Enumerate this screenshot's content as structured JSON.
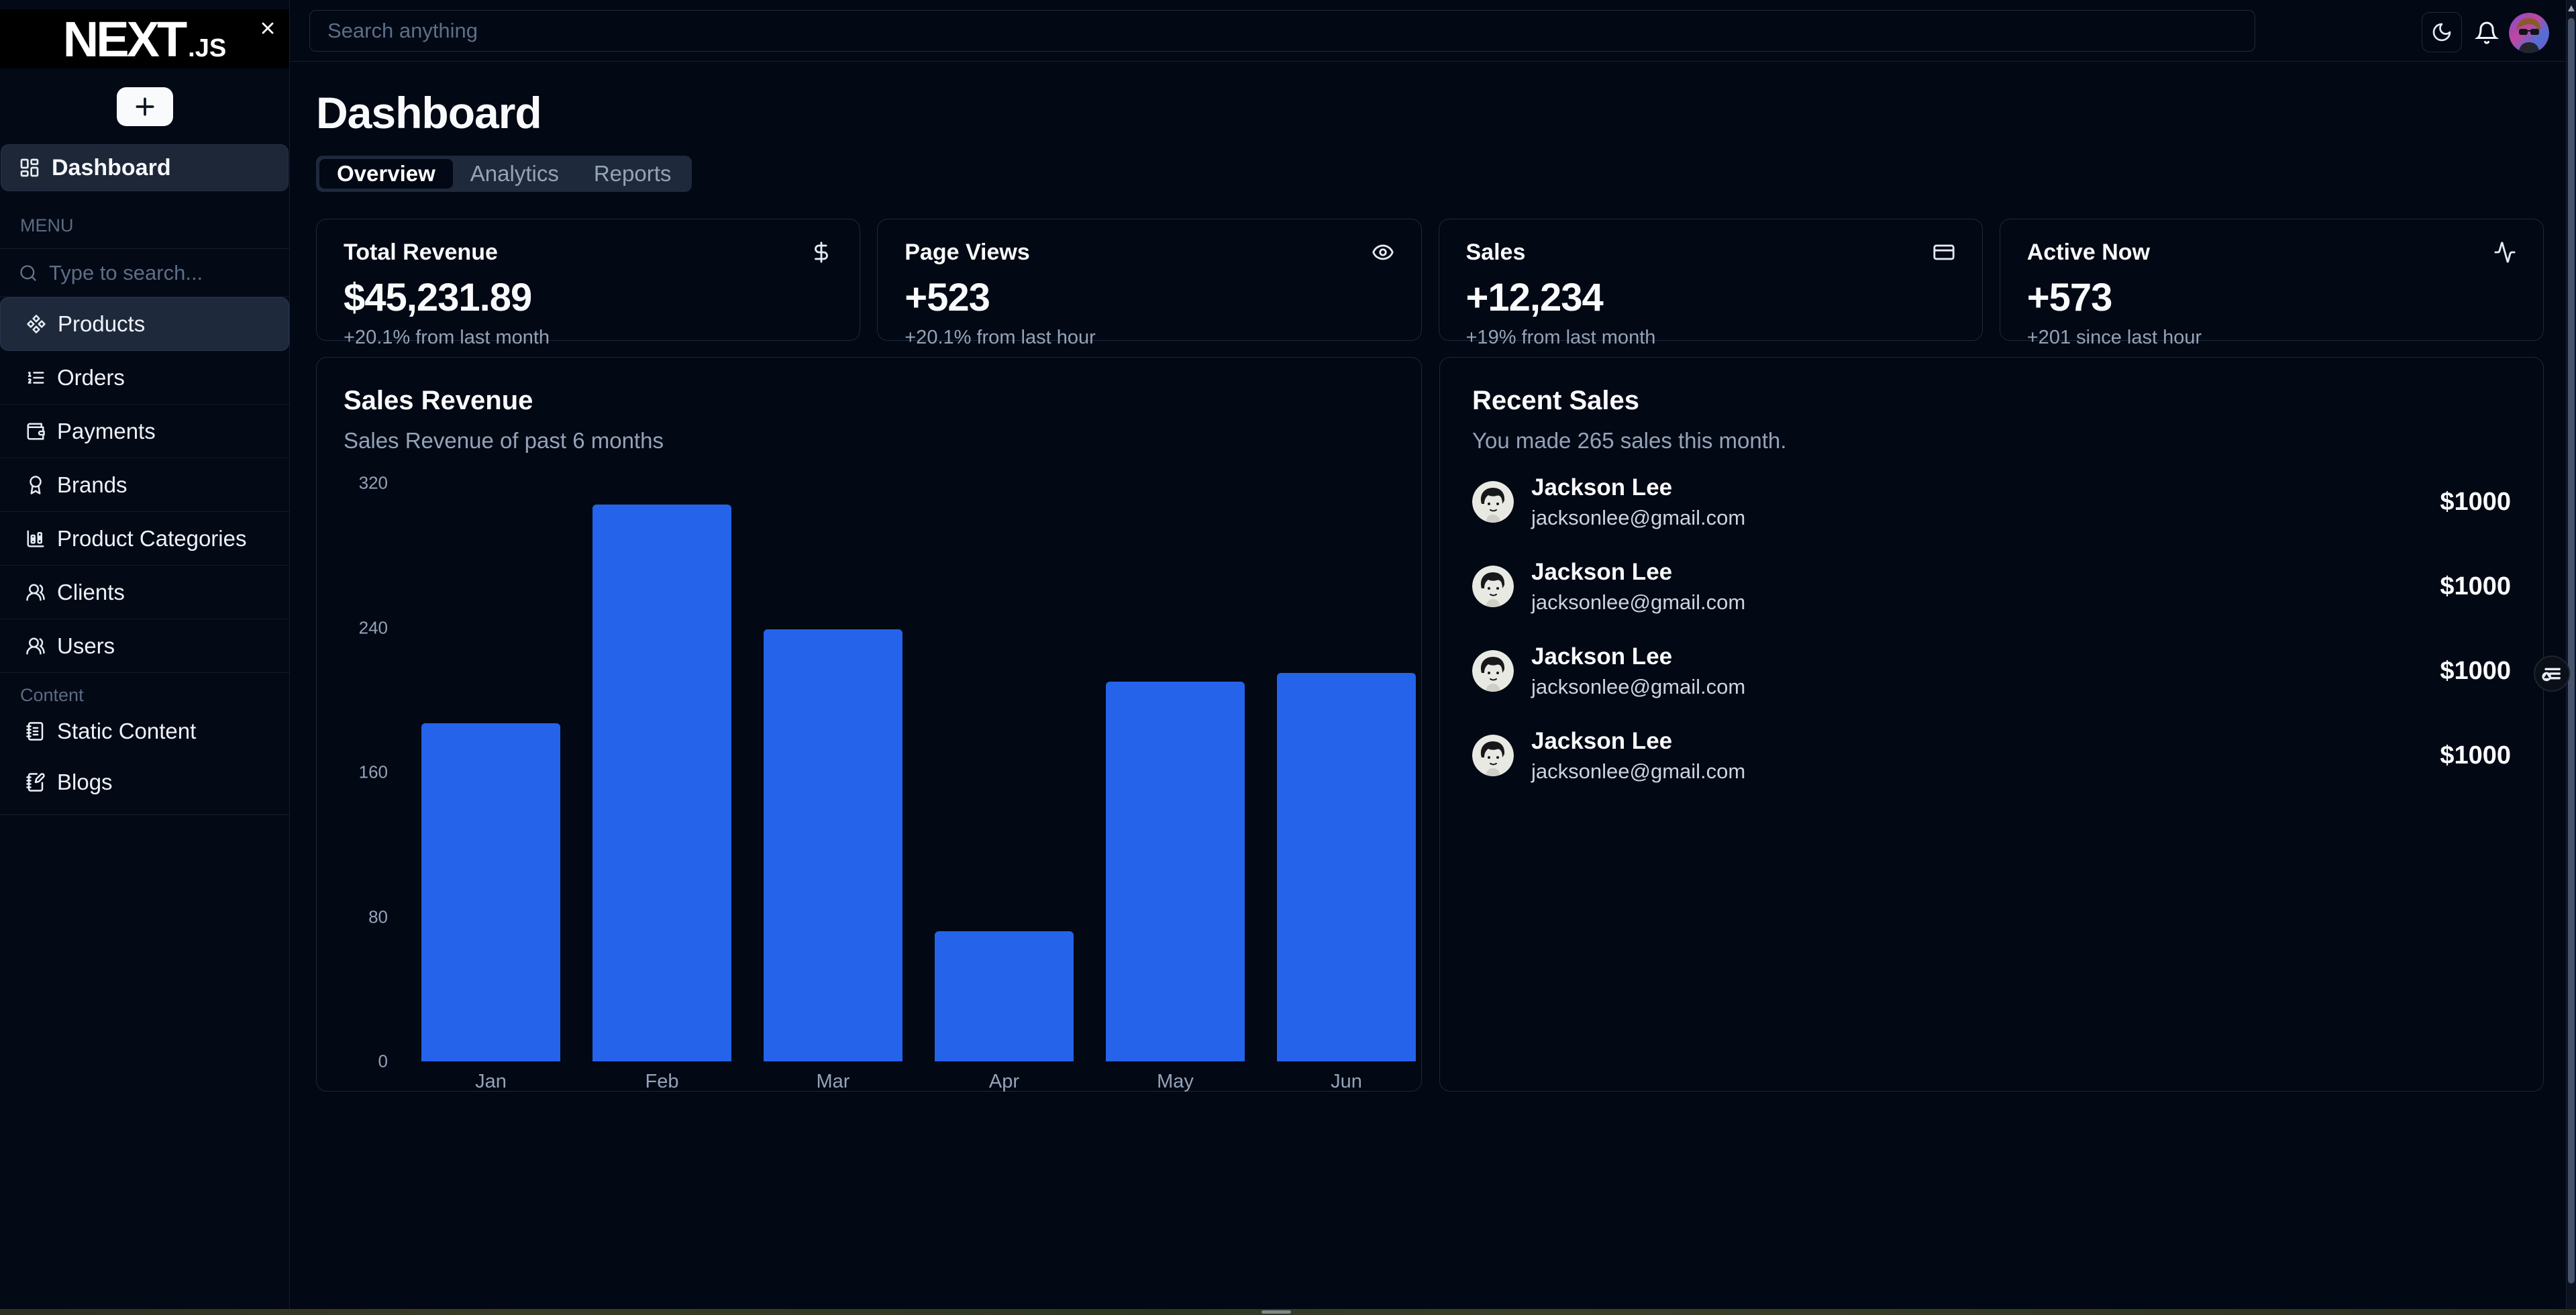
{
  "sidebar": {
    "logo_text": "NEXT",
    "logo_suffix": ".JS",
    "nav_dashboard": "Dashboard",
    "section_menu": "MENU",
    "search_placeholder": "Type to search...",
    "menu_items": [
      {
        "label": "Products",
        "icon": "component-icon",
        "active": true
      },
      {
        "label": "Orders",
        "icon": "ordered-list-icon",
        "active": false
      },
      {
        "label": "Payments",
        "icon": "wallet-icon",
        "active": false
      },
      {
        "label": "Brands",
        "icon": "award-ribbon-icon",
        "active": false
      },
      {
        "label": "Product Categories",
        "icon": "column-chart-icon",
        "active": false
      },
      {
        "label": "Clients",
        "icon": "people-icon",
        "active": false
      },
      {
        "label": "Users",
        "icon": "people-icon",
        "active": false
      }
    ],
    "section_content": "Content",
    "content_items": [
      {
        "label": "Static Content",
        "icon": "notebook-icon"
      },
      {
        "label": "Blogs",
        "icon": "notebook-pen-icon"
      }
    ]
  },
  "topbar": {
    "search_placeholder": "Search anything",
    "icons": [
      "moon-icon",
      "bell-icon",
      "user-avatar"
    ]
  },
  "page": {
    "title": "Dashboard",
    "tabs": [
      {
        "label": "Overview",
        "active": true
      },
      {
        "label": "Analytics",
        "active": false
      },
      {
        "label": "Reports",
        "active": false
      }
    ]
  },
  "stats": [
    {
      "title": "Total Revenue",
      "value": "$45,231.89",
      "change": "+20.1% from last month",
      "icon": "dollar-icon"
    },
    {
      "title": "Page Views",
      "value": "+523",
      "change": "+20.1% from last hour",
      "icon": "eye-icon"
    },
    {
      "title": "Sales",
      "value": "+12,234",
      "change": "+19% from last month",
      "icon": "credit-card-icon"
    },
    {
      "title": "Active Now",
      "value": "+573",
      "change": "+201 since last hour",
      "icon": "activity-icon"
    }
  ],
  "chart_data": {
    "type": "bar",
    "title": "Sales Revenue",
    "subtitle": "Sales Revenue of past 6 months",
    "categories": [
      "Jan",
      "Feb",
      "Mar",
      "Apr",
      "May",
      "Jun"
    ],
    "values": [
      187,
      308,
      239,
      72,
      210,
      215
    ],
    "ylim": [
      0,
      320
    ],
    "yticks": [
      0,
      80,
      160,
      240,
      320
    ],
    "bar_color": "#2563eb",
    "grid": false,
    "legend": false,
    "xlabel": "",
    "ylabel": ""
  },
  "recent_sales": {
    "title": "Recent Sales",
    "subtitle": "You made 265 sales this month.",
    "items": [
      {
        "name": "Jackson Lee",
        "email": "jacksonlee@gmail.com",
        "amount": "$1000"
      },
      {
        "name": "Jackson Lee",
        "email": "jacksonlee@gmail.com",
        "amount": "$1000"
      },
      {
        "name": "Jackson Lee",
        "email": "jacksonlee@gmail.com",
        "amount": "$1000"
      },
      {
        "name": "Jackson Lee",
        "email": "jacksonlee@gmail.com",
        "amount": "$1000"
      }
    ]
  },
  "colors": {
    "accent": "#2563eb",
    "background": "#020814",
    "card_border": "#1e293b",
    "muted": "#94a3b8",
    "active_item_bg": "#1e293b"
  }
}
